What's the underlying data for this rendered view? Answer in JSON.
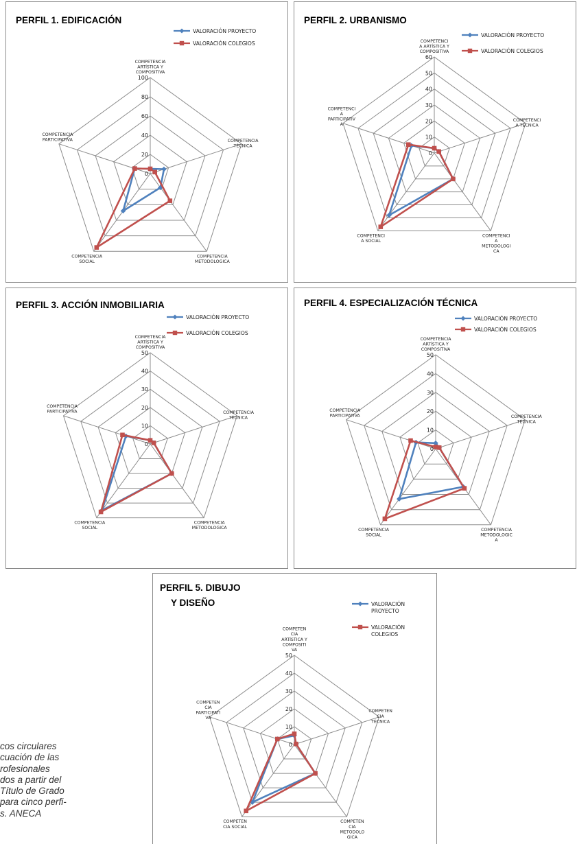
{
  "colors": {
    "proyecto": "#4f81bd",
    "colegios": "#c0504d",
    "grid": "#8c8c8c"
  },
  "legend": {
    "proyecto": "VALORACIÓN PROYECTO",
    "colegios": "VALORACIÓN COLEGIOS"
  },
  "caption_lines": [
    "cos circulares",
    "cuación de las",
    "rofesionales",
    "dos a partir del",
    "Título de Grado",
    "para cinco perfi-",
    "s. ANECA"
  ],
  "chart_data": [
    {
      "type": "radar",
      "title_lines": [
        "PERFIL 1. EDIFICACIÓN"
      ],
      "axes": [
        [
          "COMPETENCIA",
          "ARTÍSTICA Y",
          "COMPOSITIVA"
        ],
        [
          "COMPETENCIA",
          "TÉCNICA"
        ],
        [
          "COMPETENCIA",
          "METODOLOGICA"
        ],
        [
          "COMPETENCIA",
          "SOCIAL"
        ],
        [
          "COMPETENCIA",
          "PARTICIPATIVA"
        ]
      ],
      "rmax": 100,
      "ticks": [
        0,
        20,
        40,
        60,
        80,
        100
      ],
      "series": [
        {
          "name": "VALORACIÓN PROYECTO",
          "values": [
            5,
            15,
            18,
            48,
            17
          ]
        },
        {
          "name": "VALORACIÓN COLEGIOS",
          "values": [
            5,
            5,
            35,
            95,
            17
          ]
        }
      ]
    },
    {
      "type": "radar",
      "title_lines": [
        "PERFIL 2. URBANISMO"
      ],
      "axes": [
        [
          "COMPETENCI",
          "A ARTÍSTICA Y",
          "COMPOSITIVA"
        ],
        [
          "COMPETENCI",
          "A TÉCNICA"
        ],
        [
          "COMPETENCI",
          "A",
          "METODOLOGI",
          "CA"
        ],
        [
          "COMPETENCI",
          "A SOCIAL"
        ],
        [
          "COMPETENCI",
          "A",
          "PARTICIPATIV",
          "A"
        ]
      ],
      "rmax": 60,
      "ticks": [
        0,
        10,
        20,
        30,
        40,
        50,
        60
      ],
      "series": [
        {
          "name": "VALORACIÓN PROYECTO",
          "values": [
            3,
            3,
            20,
            48,
            15
          ]
        },
        {
          "name": "VALORACIÓN COLEGIOS",
          "values": [
            3,
            3,
            20,
            57,
            17
          ]
        }
      ]
    },
    {
      "type": "radar",
      "title_lines": [
        "PERFIL 3. ACCIÓN INMOBILIARIA"
      ],
      "axes": [
        [
          "COMPETENCIA",
          "ARTÍSTICA Y",
          "COMPOSITIVA"
        ],
        [
          "COMPETENCIA",
          "TÉCNICA"
        ],
        [
          "COMPETENCIA",
          "METODOLOGICA"
        ],
        [
          "COMPETENCIA",
          "SOCIAL"
        ],
        [
          "COMPETENCIA",
          "PARTICIPATIVA"
        ]
      ],
      "rmax": 50,
      "ticks": [
        0,
        10,
        20,
        30,
        40,
        50
      ],
      "series": [
        {
          "name": "VALORACIÓN PROYECTO",
          "values": [
            2,
            2,
            20,
            45,
            14
          ]
        },
        {
          "name": "VALORACIÓN COLEGIOS",
          "values": [
            2,
            2,
            20,
            46,
            16
          ]
        }
      ]
    },
    {
      "type": "radar",
      "title_lines": [
        "PERFIL 4. ESPECIALIZACIÓN TÉCNICA"
      ],
      "axes": [
        [
          "COMPETENCIA",
          "ARTÍSTICA Y",
          "COMPOSITIVA"
        ],
        [
          "COMPETENCIA",
          "TÉCNICA"
        ],
        [
          "COMPETENCIA",
          "METODOLOGIC",
          "A"
        ],
        [
          "COMPETENCIA",
          "SOCIAL"
        ],
        [
          "COMPETENCIA",
          "PARTICIPATIVA"
        ]
      ],
      "rmax": 50,
      "ticks": [
        0,
        10,
        20,
        30,
        40,
        50
      ],
      "series": [
        {
          "name": "VALORACIÓN PROYECTO",
          "values": [
            3,
            2,
            25,
            33,
            11
          ]
        },
        {
          "name": "VALORACIÓN COLEGIOS",
          "values": [
            1,
            2,
            26,
            46,
            14
          ]
        }
      ]
    },
    {
      "type": "radar",
      "title_lines": [
        "PERFIL 5. DIBUJO",
        "Y DISEÑO"
      ],
      "axes": [
        [
          "COMPETEN",
          "CIA",
          "ARTÍSTICA Y",
          "COMPOSITI",
          "VA"
        ],
        [
          "COMPETEN",
          "CIA",
          "TÉCNICA"
        ],
        [
          "COMPETEN",
          "CIA",
          "METODOLO",
          "GICA"
        ],
        [
          "COMPETEN",
          "CIA SOCIAL"
        ],
        [
          "COMPETEN",
          "CIA",
          "PARTICIPATI",
          "VA"
        ]
      ],
      "rmax": 50,
      "ticks": [
        0,
        10,
        20,
        30,
        40,
        50
      ],
      "series": [
        {
          "name": "VALORACIÓN PROYECTO",
          "values": [
            5,
            1,
            20,
            40,
            10
          ]
        },
        {
          "name": "VALORACIÓN COLEGIOS",
          "values": [
            6,
            1,
            20,
            46,
            10
          ]
        }
      ]
    }
  ]
}
